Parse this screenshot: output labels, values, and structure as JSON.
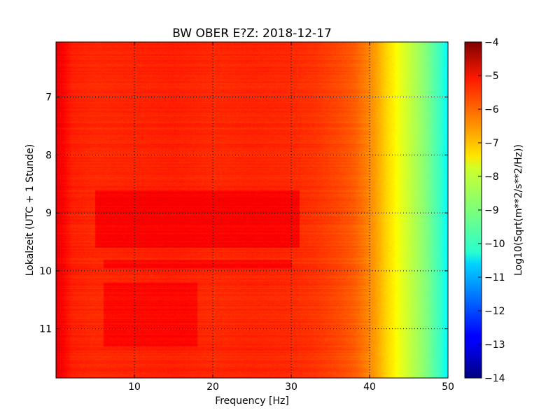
{
  "chart_data": {
    "type": "heatmap",
    "title": "BW OBER E?Z: 2018-12-17",
    "xlabel": "Frequency [Hz]",
    "ylabel": "Lokalzeit (UTC + 1 Stunde)",
    "xlim": [
      0,
      50
    ],
    "ylim": [
      11.85,
      6.05
    ],
    "y_inverted": true,
    "x_ticks": [
      10,
      20,
      30,
      40,
      50
    ],
    "x_tick_labels": [
      "10",
      "20",
      "30",
      "40",
      "50"
    ],
    "y_ticks": [
      7,
      8,
      9,
      10,
      11
    ],
    "y_tick_labels": [
      "7",
      "8",
      "9",
      "10",
      "11"
    ],
    "grid": true,
    "colormap": "jet",
    "colorbar": {
      "label": "Log10(Sqrt(m**2/s**2/Hz))",
      "min": -14,
      "max": -4,
      "ticks": [
        -4,
        -5,
        -6,
        -7,
        -8,
        -9,
        -10,
        -11,
        -12,
        -13,
        -14
      ],
      "tick_labels": [
        "−4",
        "−5",
        "−6",
        "−7",
        "−8",
        "−9",
        "−10",
        "−11",
        "−12",
        "−13",
        "−14"
      ]
    },
    "spectrum_profile": {
      "frequency_hz": [
        0,
        1,
        2,
        5,
        10,
        15,
        20,
        25,
        30,
        33,
        36,
        38,
        40,
        41,
        42,
        43,
        44,
        45,
        46,
        47,
        48,
        49,
        50
      ],
      "log_psd": [
        -5.0,
        -5.3,
        -5.55,
        -5.65,
        -5.6,
        -5.55,
        -5.65,
        -5.6,
        -5.65,
        -5.75,
        -5.95,
        -6.15,
        -6.6,
        -6.9,
        -7.3,
        -7.6,
        -8.0,
        -8.3,
        -8.6,
        -8.9,
        -9.3,
        -9.7,
        -10.3
      ]
    },
    "time_bands": [
      {
        "from": 8.6,
        "to": 9.6,
        "frequency_range": [
          5,
          31
        ],
        "log_psd": -5.1
      },
      {
        "from": 9.8,
        "to": 9.95,
        "frequency_range": [
          6,
          30
        ],
        "log_psd": -5.2
      },
      {
        "from": 10.2,
        "to": 11.3,
        "frequency_range": [
          6,
          18
        ],
        "log_psd": -5.2
      }
    ]
  }
}
